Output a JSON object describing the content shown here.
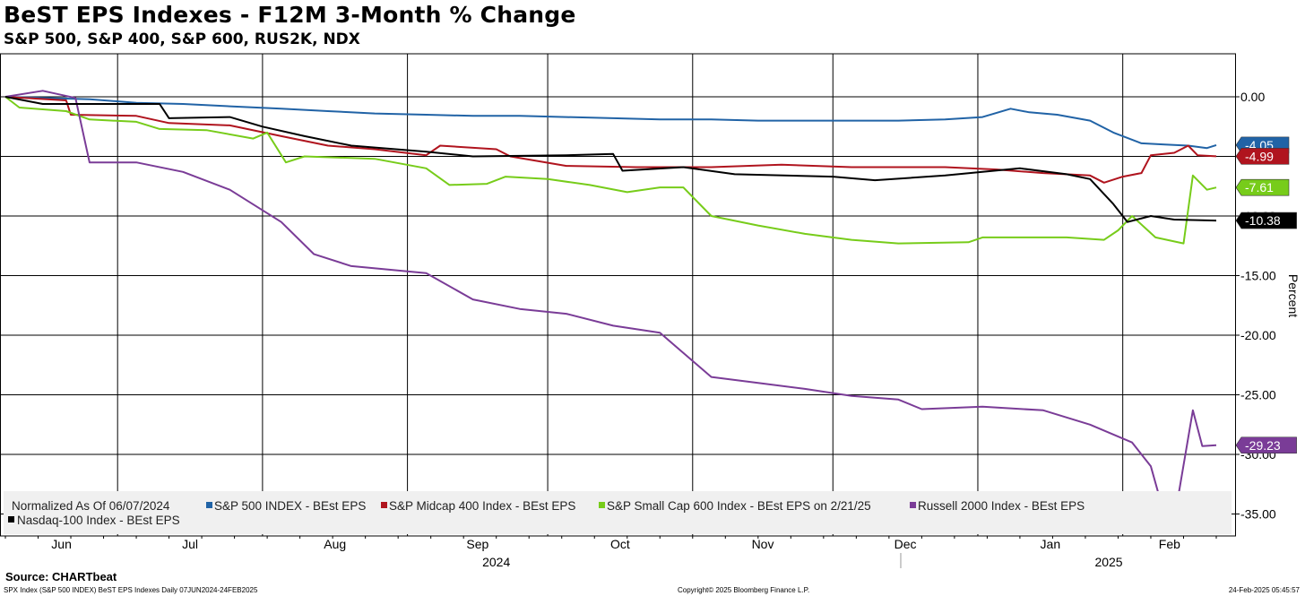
{
  "header": {
    "title": "BeST EPS Indexes - F12M 3-Month % Change",
    "subtitle": "S&P 500, S&P 400, S&P 600, RUS2K, NDX"
  },
  "footer": {
    "source": "Source: CHARTbeat",
    "left": "SPX Index (S&P 500 INDEX) BeST EPS Indexes  Daily 07JUN2024-24FEB2025",
    "center": "Copyright© 2025 Bloomberg Finance L.P.",
    "right": "24-Feb-2025 05:45:57"
  },
  "colors": {
    "sp500": "#2163a6",
    "midcap": "#b0141e",
    "smallcap": "#77cc1a",
    "russell": "#7a3c97",
    "ndx": "#000000",
    "legend_bg": "#f0f0f0"
  },
  "chart_data": {
    "type": "line",
    "title": "BeST EPS Indexes - F12M 3-Month % Change",
    "subtitle": "S&P 500, S&P 400, S&P 600, RUS2K, NDX",
    "ylabel": "Percent",
    "ylim": [
      -35,
      0
    ],
    "yticks": [
      "0.00",
      "-5.00",
      "-10.00",
      "-15.00",
      "-20.00",
      "-25.00",
      "-30.00",
      "-35.00"
    ],
    "months": [
      "Jun",
      "Jul",
      "Aug",
      "Sep",
      "Oct",
      "Nov",
      "Dec",
      "Jan",
      "Feb"
    ],
    "years": [
      "2024",
      "2025"
    ],
    "date_range": [
      "2024-06-07",
      "2025-02-21"
    ],
    "grid": true,
    "legend_placement": "bottom",
    "legend_note": "Normalized As Of 06/07/2024",
    "series": [
      {
        "name": "S&P 500 INDEX - BEst EPS",
        "key": "sp500",
        "last_value": "-4.05",
        "points": [
          [
            "2024-06-07",
            0
          ],
          [
            "2024-06-15",
            -0.1
          ],
          [
            "2024-06-25",
            -0.2
          ],
          [
            "2024-07-05",
            -0.5
          ],
          [
            "2024-07-15",
            -0.6
          ],
          [
            "2024-07-25",
            -0.8
          ],
          [
            "2024-08-05",
            -1.0
          ],
          [
            "2024-08-15",
            -1.2
          ],
          [
            "2024-08-25",
            -1.4
          ],
          [
            "2024-09-05",
            -1.5
          ],
          [
            "2024-09-15",
            -1.6
          ],
          [
            "2024-09-25",
            -1.6
          ],
          [
            "2024-10-05",
            -1.7
          ],
          [
            "2024-10-15",
            -1.8
          ],
          [
            "2024-10-25",
            -1.9
          ],
          [
            "2024-11-05",
            -1.9
          ],
          [
            "2024-11-15",
            -2.0
          ],
          [
            "2024-11-25",
            -2.0
          ],
          [
            "2024-12-05",
            -2.0
          ],
          [
            "2024-12-15",
            -2.0
          ],
          [
            "2024-12-25",
            -1.9
          ],
          [
            "2025-01-02",
            -1.7
          ],
          [
            "2025-01-08",
            -1.0
          ],
          [
            "2025-01-12",
            -1.3
          ],
          [
            "2025-01-18",
            -1.5
          ],
          [
            "2025-01-25",
            -2.0
          ],
          [
            "2025-01-30",
            -3.0
          ],
          [
            "2025-02-05",
            -3.9
          ],
          [
            "2025-02-10",
            -4.0
          ],
          [
            "2025-02-15",
            -4.1
          ],
          [
            "2025-02-19",
            -4.3
          ],
          [
            "2025-02-21",
            -4.05
          ]
        ]
      },
      {
        "name": "S&P Midcap 400 Index - BEst EPS",
        "key": "midcap",
        "last_value": "-4.99",
        "points": [
          [
            "2024-06-07",
            0
          ],
          [
            "2024-06-20",
            -0.3
          ],
          [
            "2024-06-21",
            -1.5
          ],
          [
            "2024-07-05",
            -1.6
          ],
          [
            "2024-07-12",
            -2.2
          ],
          [
            "2024-07-25",
            -2.4
          ],
          [
            "2024-08-05",
            -3.3
          ],
          [
            "2024-08-15",
            -4.1
          ],
          [
            "2024-08-25",
            -4.4
          ],
          [
            "2024-09-05",
            -4.9
          ],
          [
            "2024-09-08",
            -4.1
          ],
          [
            "2024-09-20",
            -4.4
          ],
          [
            "2024-09-23",
            -5.0
          ],
          [
            "2024-10-05",
            -5.8
          ],
          [
            "2024-10-20",
            -5.9
          ],
          [
            "2024-11-05",
            -5.9
          ],
          [
            "2024-11-20",
            -5.7
          ],
          [
            "2024-12-05",
            -5.9
          ],
          [
            "2024-12-25",
            -5.9
          ],
          [
            "2025-01-05",
            -6.1
          ],
          [
            "2025-01-15",
            -6.4
          ],
          [
            "2025-01-25",
            -6.6
          ],
          [
            "2025-01-28",
            -7.2
          ],
          [
            "2025-02-01",
            -6.7
          ],
          [
            "2025-02-05",
            -6.4
          ],
          [
            "2025-02-07",
            -4.9
          ],
          [
            "2025-02-12",
            -4.7
          ],
          [
            "2025-02-15",
            -4.1
          ],
          [
            "2025-02-17",
            -4.9
          ],
          [
            "2025-02-21",
            -4.99
          ]
        ]
      },
      {
        "name": "S&P Small Cap 600 Index - BEst EPS on 2/21/25",
        "key": "smallcap",
        "last_value": "-7.61",
        "points": [
          [
            "2024-06-07",
            0
          ],
          [
            "2024-06-10",
            -0.9
          ],
          [
            "2024-06-20",
            -1.2
          ],
          [
            "2024-06-25",
            -1.9
          ],
          [
            "2024-07-05",
            -2.1
          ],
          [
            "2024-07-10",
            -2.7
          ],
          [
            "2024-07-20",
            -2.8
          ],
          [
            "2024-07-30",
            -3.5
          ],
          [
            "2024-08-02",
            -3.0
          ],
          [
            "2024-08-06",
            -5.5
          ],
          [
            "2024-08-10",
            -5.0
          ],
          [
            "2024-08-25",
            -5.2
          ],
          [
            "2024-09-05",
            -6.0
          ],
          [
            "2024-09-10",
            -7.4
          ],
          [
            "2024-09-18",
            -7.3
          ],
          [
            "2024-09-22",
            -6.7
          ],
          [
            "2024-10-01",
            -6.9
          ],
          [
            "2024-10-10",
            -7.4
          ],
          [
            "2024-10-18",
            -8.0
          ],
          [
            "2024-10-25",
            -7.6
          ],
          [
            "2024-10-30",
            -7.6
          ],
          [
            "2024-11-05",
            -10.0
          ],
          [
            "2024-11-15",
            -10.8
          ],
          [
            "2024-11-25",
            -11.5
          ],
          [
            "2024-12-05",
            -12.0
          ],
          [
            "2024-12-15",
            -12.3
          ],
          [
            "2024-12-30",
            -12.2
          ],
          [
            "2025-01-02",
            -11.8
          ],
          [
            "2025-01-20",
            -11.8
          ],
          [
            "2025-01-28",
            -12.0
          ],
          [
            "2025-01-31",
            -11.2
          ],
          [
            "2025-02-03",
            -10.0
          ],
          [
            "2025-02-08",
            -11.8
          ],
          [
            "2025-02-14",
            -12.3
          ],
          [
            "2025-02-16",
            -6.6
          ],
          [
            "2025-02-19",
            -7.8
          ],
          [
            "2025-02-21",
            -7.61
          ]
        ]
      },
      {
        "name": "Russell 2000 Index - BEst EPS",
        "key": "russell",
        "last_value": "-29.23",
        "points": [
          [
            "2024-06-07",
            0
          ],
          [
            "2024-06-15",
            0.5
          ],
          [
            "2024-06-22",
            -0.1
          ],
          [
            "2024-06-25",
            -5.5
          ],
          [
            "2024-07-05",
            -5.5
          ],
          [
            "2024-07-15",
            -6.3
          ],
          [
            "2024-07-25",
            -7.8
          ],
          [
            "2024-08-05",
            -10.5
          ],
          [
            "2024-08-12",
            -13.2
          ],
          [
            "2024-08-20",
            -14.2
          ],
          [
            "2024-09-05",
            -14.8
          ],
          [
            "2024-09-15",
            -17.0
          ],
          [
            "2024-09-25",
            -17.8
          ],
          [
            "2024-10-05",
            -18.2
          ],
          [
            "2024-10-15",
            -19.2
          ],
          [
            "2024-10-25",
            -19.8
          ],
          [
            "2024-11-05",
            -23.5
          ],
          [
            "2024-11-15",
            -24.0
          ],
          [
            "2024-11-25",
            -24.5
          ],
          [
            "2024-12-05",
            -25.1
          ],
          [
            "2024-12-15",
            -25.4
          ],
          [
            "2024-12-20",
            -26.2
          ],
          [
            "2025-01-02",
            -26.0
          ],
          [
            "2025-01-15",
            -26.3
          ],
          [
            "2025-01-25",
            -27.5
          ],
          [
            "2025-02-03",
            -29.0
          ],
          [
            "2025-02-07",
            -31.0
          ],
          [
            "2025-02-09",
            -33.8
          ],
          [
            "2025-02-13",
            -33.2
          ],
          [
            "2025-02-16",
            -26.3
          ],
          [
            "2025-02-18",
            -29.3
          ],
          [
            "2025-02-21",
            -29.23
          ]
        ]
      },
      {
        "name": "Nasdaq-100 Index - BEst EPS",
        "key": "ndx",
        "last_value": "-10.38",
        "points": [
          [
            "2024-06-07",
            0
          ],
          [
            "2024-06-15",
            -0.6
          ],
          [
            "2024-07-10",
            -0.6
          ],
          [
            "2024-07-12",
            -1.8
          ],
          [
            "2024-07-25",
            -1.7
          ],
          [
            "2024-08-01",
            -2.5
          ],
          [
            "2024-08-10",
            -3.3
          ],
          [
            "2024-08-20",
            -4.1
          ],
          [
            "2024-09-05",
            -4.6
          ],
          [
            "2024-09-15",
            -5.0
          ],
          [
            "2024-10-05",
            -4.9
          ],
          [
            "2024-10-15",
            -4.8
          ],
          [
            "2024-10-17",
            -6.2
          ],
          [
            "2024-10-30",
            -5.9
          ],
          [
            "2024-11-10",
            -6.5
          ],
          [
            "2024-12-01",
            -6.7
          ],
          [
            "2024-12-10",
            -7.0
          ],
          [
            "2024-12-25",
            -6.6
          ],
          [
            "2025-01-02",
            -6.3
          ],
          [
            "2025-01-10",
            -6.0
          ],
          [
            "2025-01-20",
            -6.5
          ],
          [
            "2025-01-25",
            -6.9
          ],
          [
            "2025-01-30",
            -9.0
          ],
          [
            "2025-02-02",
            -10.5
          ],
          [
            "2025-02-07",
            -10.0
          ],
          [
            "2025-02-12",
            -10.3
          ],
          [
            "2025-02-21",
            -10.38
          ]
        ]
      }
    ],
    "legend_rows": [
      [
        "sp500",
        "midcap",
        "smallcap",
        "russell"
      ],
      [
        "ndx"
      ]
    ]
  }
}
